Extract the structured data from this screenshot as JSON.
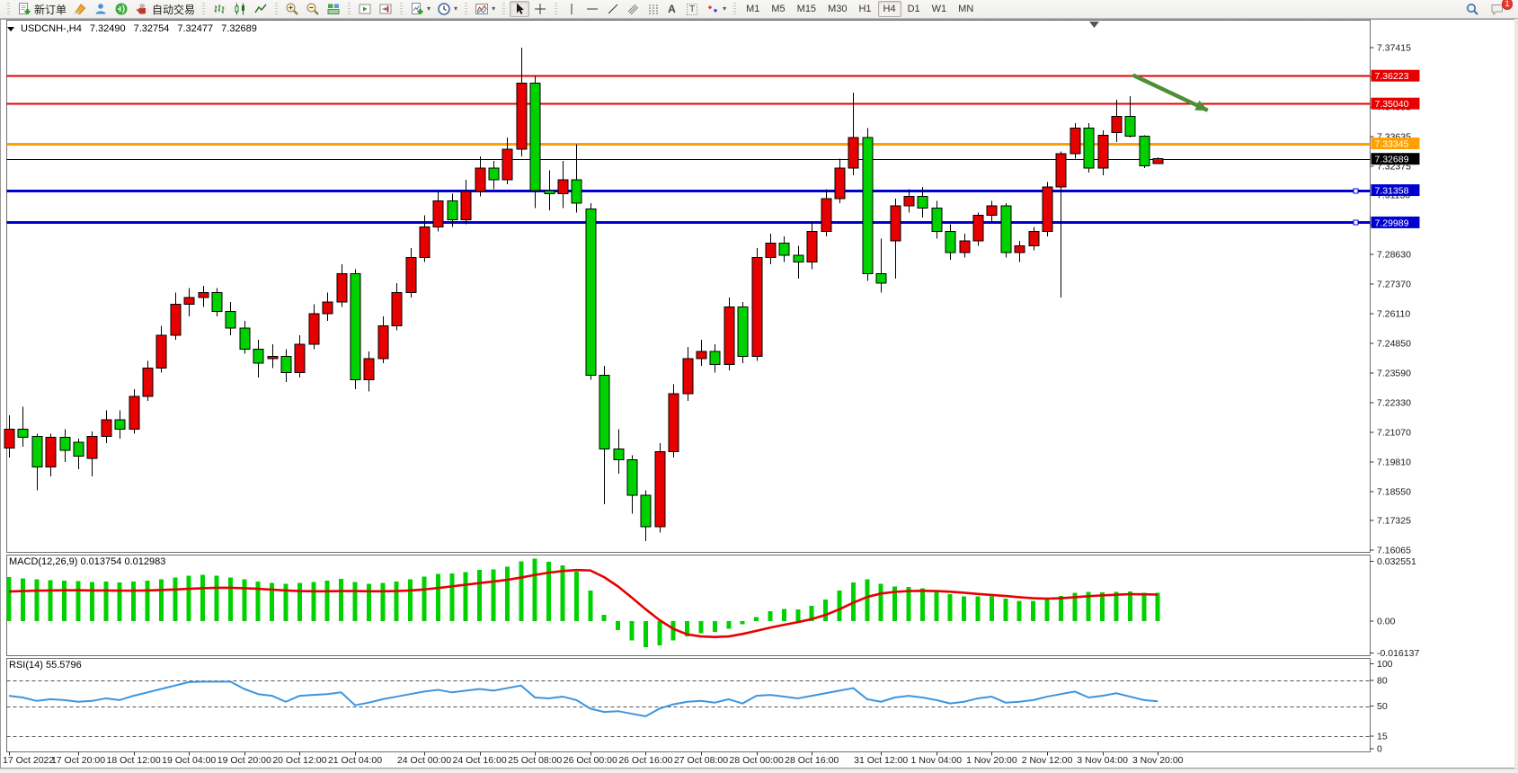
{
  "toolbar": {
    "new_order_label": "新订单",
    "auto_trading_label": "自动交易",
    "text_tool_glyph": "A",
    "label_tool_glyph": "T",
    "timeframes": [
      "M1",
      "M5",
      "M15",
      "M30",
      "H1",
      "H4",
      "D1",
      "W1",
      "MN"
    ],
    "active_timeframe": "H4",
    "notification_count": "1"
  },
  "chart": {
    "title": {
      "symbol": "USDCNH-,H4",
      "open": "7.32490",
      "high": "7.32754",
      "low": "7.32477",
      "close": "7.32689"
    }
  },
  "indicators": {
    "macd": {
      "label": "MACD(12,26,9)",
      "value": "0.013754",
      "signal_value": "0.012983",
      "axis": [
        {
          "v": 0.032551,
          "label": "0.032551"
        },
        {
          "v": 0,
          "label": "0.00"
        },
        {
          "v": -0.016137,
          "label": "-0.016137"
        }
      ]
    },
    "rsi": {
      "label": "RSI(14)",
      "value": "55.5796",
      "levels": [
        80,
        50,
        15
      ],
      "axis": [
        {
          "v": 100,
          "label": "100"
        },
        {
          "v": 80,
          "label": "80"
        },
        {
          "v": 50,
          "label": "50"
        },
        {
          "v": 15,
          "label": "15"
        },
        {
          "v": 0,
          "label": "0"
        }
      ]
    }
  },
  "price_axis": {
    "ticks": [
      {
        "v": 7.37415,
        "label": "7.37415"
      },
      {
        "v": 7.36155,
        "label": "7.36155"
      },
      {
        "v": 7.34895,
        "label": "7.34895"
      },
      {
        "v": 7.33635,
        "label": "7.33635"
      },
      {
        "v": 7.32375,
        "label": "7.32375"
      },
      {
        "v": 7.3115,
        "label": "7.31150"
      },
      {
        "v": 7.2989,
        "label": "7.29890"
      },
      {
        "v": 7.2863,
        "label": "7.28630"
      },
      {
        "v": 7.2737,
        "label": "7.27370"
      },
      {
        "v": 7.2611,
        "label": "7.26110"
      },
      {
        "v": 7.2485,
        "label": "7.24850"
      },
      {
        "v": 7.2359,
        "label": "7.23590"
      },
      {
        "v": 7.2233,
        "label": "7.22330"
      },
      {
        "v": 7.2107,
        "label": "7.21070"
      },
      {
        "v": 7.1981,
        "label": "7.19810"
      },
      {
        "v": 7.1855,
        "label": "7.18550"
      },
      {
        "v": 7.17325,
        "label": "7.17325"
      },
      {
        "v": 7.16065,
        "label": "7.16065"
      }
    ]
  },
  "time_axis": {
    "labels": [
      {
        "text": "17 Oct 2022",
        "idx": 0
      },
      {
        "text": "17 Oct 20:00",
        "idx": 5
      },
      {
        "text": "18 Oct 12:00",
        "idx": 9
      },
      {
        "text": "19 Oct 04:00",
        "idx": 13
      },
      {
        "text": "19 Oct 20:00",
        "idx": 17
      },
      {
        "text": "20 Oct 12:00",
        "idx": 21
      },
      {
        "text": "21 Oct 04:00",
        "idx": 25
      },
      {
        "text": "24 Oct 00:00",
        "idx": 30
      },
      {
        "text": "24 Oct 16:00",
        "idx": 34
      },
      {
        "text": "25 Oct 08:00",
        "idx": 38
      },
      {
        "text": "26 Oct 00:00",
        "idx": 42
      },
      {
        "text": "26 Oct 16:00",
        "idx": 46
      },
      {
        "text": "27 Oct 08:00",
        "idx": 50
      },
      {
        "text": "28 Oct 00:00",
        "idx": 54
      },
      {
        "text": "28 Oct 16:00",
        "idx": 58
      },
      {
        "text": "31 Oct 12:00",
        "idx": 63
      },
      {
        "text": "1 Nov 04:00",
        "idx": 67
      },
      {
        "text": "1 Nov 20:00",
        "idx": 71
      },
      {
        "text": "2 Nov 12:00",
        "idx": 75
      },
      {
        "text": "3 Nov 04:00",
        "idx": 79
      },
      {
        "text": "3 Nov 20:00",
        "idx": 83
      }
    ]
  },
  "colors": {
    "up": "#e80000",
    "down": "#00d200",
    "wick": "#000000",
    "line_red": "#e60000",
    "line_orange": "#ffa000",
    "line_blue": "#0000d2",
    "line_black": "#000000",
    "macd_bar": "#00d200",
    "macd_signal": "#e60000",
    "rsi_line": "#3d95dd",
    "arrow": "#4e8f35",
    "badge_text": "#ffffff",
    "axis_text": "#1a1a1a"
  },
  "chart_data": {
    "type": "candlestick",
    "symbol": "USDCNH-",
    "timeframe": "H4",
    "horizontal_lines": [
      {
        "price": 7.36223,
        "label": "7.36223",
        "color": "#e60000",
        "width": 2,
        "handle": false
      },
      {
        "price": 7.3504,
        "label": "7.35040",
        "color": "#e60000",
        "width": 2,
        "handle": false
      },
      {
        "price": 7.33345,
        "label": "7.33345",
        "color": "#ffa000",
        "width": 3,
        "handle": false
      },
      {
        "price": 7.32689,
        "label": "7.32689",
        "color": "#000000",
        "width": 1,
        "handle": false
      },
      {
        "price": 7.31358,
        "label": "7.31358",
        "color": "#0000d2",
        "width": 3,
        "handle": true
      },
      {
        "price": 7.29989,
        "label": "7.29989",
        "color": "#0000d2",
        "width": 3,
        "handle": true
      }
    ],
    "arrow": {
      "i1": 81.2,
      "p1": 7.3625,
      "i2": 86.6,
      "p2": 7.3475
    },
    "candles": [
      {
        "t": "17 Oct 00:00",
        "o": 7.204,
        "h": 7.218,
        "l": 7.2,
        "c": 7.212
      },
      {
        "t": "17 Oct 04:00",
        "o": 7.212,
        "h": 7.2215,
        "l": 7.2045,
        "c": 7.2085
      },
      {
        "t": "17 Oct 08:00",
        "o": 7.209,
        "h": 7.21,
        "l": 7.186,
        "c": 7.196
      },
      {
        "t": "17 Oct 12:00",
        "o": 7.196,
        "h": 7.21,
        "l": 7.192,
        "c": 7.2085
      },
      {
        "t": "17 Oct 16:00",
        "o": 7.2085,
        "h": 7.212,
        "l": 7.198,
        "c": 7.203
      },
      {
        "t": "17 Oct 20:00",
        "o": 7.2065,
        "h": 7.208,
        "l": 7.195,
        "c": 7.2005
      },
      {
        "t": "18 Oct 00:00",
        "o": 7.1995,
        "h": 7.211,
        "l": 7.192,
        "c": 7.209
      },
      {
        "t": "18 Oct 04:00",
        "o": 7.209,
        "h": 7.22,
        "l": 7.206,
        "c": 7.216
      },
      {
        "t": "18 Oct 08:00",
        "o": 7.216,
        "h": 7.22,
        "l": 7.208,
        "c": 7.212
      },
      {
        "t": "18 Oct 12:00",
        "o": 7.212,
        "h": 7.229,
        "l": 7.21,
        "c": 7.226
      },
      {
        "t": "18 Oct 16:00",
        "o": 7.226,
        "h": 7.241,
        "l": 7.224,
        "c": 7.238
      },
      {
        "t": "18 Oct 20:00",
        "o": 7.238,
        "h": 7.256,
        "l": 7.236,
        "c": 7.252
      },
      {
        "t": "19 Oct 00:00",
        "o": 7.252,
        "h": 7.27,
        "l": 7.25,
        "c": 7.265
      },
      {
        "t": "19 Oct 04:00",
        "o": 7.265,
        "h": 7.272,
        "l": 7.26,
        "c": 7.268
      },
      {
        "t": "19 Oct 08:00",
        "o": 7.268,
        "h": 7.273,
        "l": 7.264,
        "c": 7.27
      },
      {
        "t": "19 Oct 12:00",
        "o": 7.27,
        "h": 7.272,
        "l": 7.26,
        "c": 7.262
      },
      {
        "t": "19 Oct 16:00",
        "o": 7.262,
        "h": 7.266,
        "l": 7.252,
        "c": 7.255
      },
      {
        "t": "19 Oct 20:00",
        "o": 7.255,
        "h": 7.258,
        "l": 7.244,
        "c": 7.246
      },
      {
        "t": "20 Oct 00:00",
        "o": 7.246,
        "h": 7.25,
        "l": 7.234,
        "c": 7.24
      },
      {
        "t": "20 Oct 04:00",
        "o": 7.242,
        "h": 7.248,
        "l": 7.238,
        "c": 7.243
      },
      {
        "t": "20 Oct 08:00",
        "o": 7.243,
        "h": 7.246,
        "l": 7.232,
        "c": 7.236
      },
      {
        "t": "20 Oct 12:00",
        "o": 7.236,
        "h": 7.252,
        "l": 7.234,
        "c": 7.248
      },
      {
        "t": "20 Oct 16:00",
        "o": 7.248,
        "h": 7.265,
        "l": 7.246,
        "c": 7.261
      },
      {
        "t": "20 Oct 20:00",
        "o": 7.261,
        "h": 7.27,
        "l": 7.258,
        "c": 7.266
      },
      {
        "t": "21 Oct 00:00",
        "o": 7.266,
        "h": 7.282,
        "l": 7.264,
        "c": 7.278
      },
      {
        "t": "21 Oct 04:00",
        "o": 7.278,
        "h": 7.28,
        "l": 7.229,
        "c": 7.233
      },
      {
        "t": "21 Oct 08:00",
        "o": 7.233,
        "h": 7.245,
        "l": 7.228,
        "c": 7.242
      },
      {
        "t": "21 Oct 12:00",
        "o": 7.242,
        "h": 7.26,
        "l": 7.24,
        "c": 7.256
      },
      {
        "t": "21 Oct 16:00",
        "o": 7.256,
        "h": 7.274,
        "l": 7.254,
        "c": 7.27
      },
      {
        "t": "21 Oct 20:00",
        "o": 7.27,
        "h": 7.289,
        "l": 7.268,
        "c": 7.285
      },
      {
        "t": "24 Oct 00:00",
        "o": 7.285,
        "h": 7.303,
        "l": 7.283,
        "c": 7.298
      },
      {
        "t": "24 Oct 04:00",
        "o": 7.298,
        "h": 7.313,
        "l": 7.296,
        "c": 7.309
      },
      {
        "t": "24 Oct 08:00",
        "o": 7.309,
        "h": 7.312,
        "l": 7.298,
        "c": 7.301
      },
      {
        "t": "24 Oct 12:00",
        "o": 7.301,
        "h": 7.318,
        "l": 7.299,
        "c": 7.313
      },
      {
        "t": "24 Oct 16:00",
        "o": 7.313,
        "h": 7.328,
        "l": 7.311,
        "c": 7.323
      },
      {
        "t": "24 Oct 20:00",
        "o": 7.323,
        "h": 7.326,
        "l": 7.314,
        "c": 7.318
      },
      {
        "t": "25 Oct 00:00",
        "o": 7.318,
        "h": 7.336,
        "l": 7.316,
        "c": 7.331
      },
      {
        "t": "25 Oct 04:00",
        "o": 7.331,
        "h": 7.3742,
        "l": 7.328,
        "c": 7.359
      },
      {
        "t": "25 Oct 08:00",
        "o": 7.359,
        "h": 7.362,
        "l": 7.306,
        "c": 7.3135
      },
      {
        "t": "25 Oct 12:00",
        "o": 7.3135,
        "h": 7.322,
        "l": 7.305,
        "c": 7.312
      },
      {
        "t": "25 Oct 16:00",
        "o": 7.312,
        "h": 7.326,
        "l": 7.306,
        "c": 7.318
      },
      {
        "t": "25 Oct 20:00",
        "o": 7.318,
        "h": 7.333,
        "l": 7.304,
        "c": 7.308
      },
      {
        "t": "26 Oct 00:00",
        "o": 7.3055,
        "h": 7.308,
        "l": 7.233,
        "c": 7.235
      },
      {
        "t": "26 Oct 04:00",
        "o": 7.235,
        "h": 7.239,
        "l": 7.18,
        "c": 7.2035
      },
      {
        "t": "26 Oct 08:00",
        "o": 7.2035,
        "h": 7.212,
        "l": 7.193,
        "c": 7.199
      },
      {
        "t": "26 Oct 12:00",
        "o": 7.199,
        "h": 7.201,
        "l": 7.176,
        "c": 7.184
      },
      {
        "t": "26 Oct 16:00",
        "o": 7.184,
        "h": 7.186,
        "l": 7.1645,
        "c": 7.1705
      },
      {
        "t": "26 Oct 20:00",
        "o": 7.1705,
        "h": 7.206,
        "l": 7.168,
        "c": 7.2025
      },
      {
        "t": "27 Oct 00:00",
        "o": 7.2025,
        "h": 7.231,
        "l": 7.2,
        "c": 7.227
      },
      {
        "t": "27 Oct 04:00",
        "o": 7.227,
        "h": 7.247,
        "l": 7.224,
        "c": 7.242
      },
      {
        "t": "27 Oct 08:00",
        "o": 7.242,
        "h": 7.25,
        "l": 7.239,
        "c": 7.245
      },
      {
        "t": "27 Oct 12:00",
        "o": 7.245,
        "h": 7.248,
        "l": 7.236,
        "c": 7.2395
      },
      {
        "t": "27 Oct 16:00",
        "o": 7.2395,
        "h": 7.268,
        "l": 7.237,
        "c": 7.264
      },
      {
        "t": "27 Oct 20:00",
        "o": 7.264,
        "h": 7.266,
        "l": 7.24,
        "c": 7.243
      },
      {
        "t": "28 Oct 00:00",
        "o": 7.243,
        "h": 7.289,
        "l": 7.241,
        "c": 7.285
      },
      {
        "t": "28 Oct 04:00",
        "o": 7.285,
        "h": 7.295,
        "l": 7.282,
        "c": 7.291
      },
      {
        "t": "28 Oct 08:00",
        "o": 7.291,
        "h": 7.294,
        "l": 7.283,
        "c": 7.286
      },
      {
        "t": "28 Oct 12:00",
        "o": 7.286,
        "h": 7.29,
        "l": 7.276,
        "c": 7.283
      },
      {
        "t": "28 Oct 16:00",
        "o": 7.283,
        "h": 7.3,
        "l": 7.28,
        "c": 7.296
      },
      {
        "t": "28 Oct 20:00",
        "o": 7.296,
        "h": 7.314,
        "l": 7.294,
        "c": 7.31
      },
      {
        "t": "31 Oct 00:00",
        "o": 7.31,
        "h": 7.327,
        "l": 7.308,
        "c": 7.323
      },
      {
        "t": "31 Oct 04:00",
        "o": 7.323,
        "h": 7.355,
        "l": 7.32,
        "c": 7.336
      },
      {
        "t": "31 Oct 08:00",
        "o": 7.336,
        "h": 7.34,
        "l": 7.275,
        "c": 7.278
      },
      {
        "t": "31 Oct 12:00",
        "o": 7.278,
        "h": 7.293,
        "l": 7.27,
        "c": 7.274
      },
      {
        "t": "31 Oct 16:00",
        "o": 7.292,
        "h": 7.31,
        "l": 7.276,
        "c": 7.307
      },
      {
        "t": "31 Oct 20:00",
        "o": 7.307,
        "h": 7.314,
        "l": 7.304,
        "c": 7.311
      },
      {
        "t": "1 Nov 00:00",
        "o": 7.311,
        "h": 7.315,
        "l": 7.302,
        "c": 7.306
      },
      {
        "t": "1 Nov 04:00",
        "o": 7.306,
        "h": 7.309,
        "l": 7.293,
        "c": 7.296
      },
      {
        "t": "1 Nov 08:00",
        "o": 7.296,
        "h": 7.299,
        "l": 7.284,
        "c": 7.287
      },
      {
        "t": "1 Nov 12:00",
        "o": 7.287,
        "h": 7.295,
        "l": 7.285,
        "c": 7.292
      },
      {
        "t": "1 Nov 16:00",
        "o": 7.292,
        "h": 7.304,
        "l": 7.29,
        "c": 7.303
      },
      {
        "t": "1 Nov 20:00",
        "o": 7.303,
        "h": 7.309,
        "l": 7.3,
        "c": 7.307
      },
      {
        "t": "2 Nov 00:00",
        "o": 7.307,
        "h": 7.308,
        "l": 7.285,
        "c": 7.287
      },
      {
        "t": "2 Nov 04:00",
        "o": 7.287,
        "h": 7.292,
        "l": 7.283,
        "c": 7.29
      },
      {
        "t": "2 Nov 08:00",
        "o": 7.29,
        "h": 7.298,
        "l": 7.288,
        "c": 7.296
      },
      {
        "t": "2 Nov 12:00",
        "o": 7.296,
        "h": 7.317,
        "l": 7.294,
        "c": 7.315
      },
      {
        "t": "2 Nov 16:00",
        "o": 7.315,
        "h": 7.33,
        "l": 7.268,
        "c": 7.329
      },
      {
        "t": "2 Nov 20:00",
        "o": 7.329,
        "h": 7.342,
        "l": 7.327,
        "c": 7.34
      },
      {
        "t": "3 Nov 00:00",
        "o": 7.34,
        "h": 7.342,
        "l": 7.321,
        "c": 7.323
      },
      {
        "t": "3 Nov 04:00",
        "o": 7.323,
        "h": 7.339,
        "l": 7.32,
        "c": 7.337
      },
      {
        "t": "3 Nov 08:00",
        "o": 7.338,
        "h": 7.352,
        "l": 7.334,
        "c": 7.345
      },
      {
        "t": "3 Nov 12:00",
        "o": 7.345,
        "h": 7.3535,
        "l": 7.336,
        "c": 7.3365
      },
      {
        "t": "3 Nov 16:00",
        "o": 7.3365,
        "h": 7.337,
        "l": 7.323,
        "c": 7.324
      },
      {
        "t": "3 Nov 20:00",
        "o": 7.3249,
        "h": 7.32754,
        "l": 7.32477,
        "c": 7.32689
      }
    ],
    "macd": {
      "histogram": [
        0.0215,
        0.021,
        0.0205,
        0.02,
        0.0198,
        0.0195,
        0.0192,
        0.0194,
        0.019,
        0.0194,
        0.0198,
        0.0205,
        0.0214,
        0.0222,
        0.0226,
        0.0222,
        0.0214,
        0.0204,
        0.0194,
        0.0188,
        0.0182,
        0.0186,
        0.0192,
        0.0198,
        0.0206,
        0.0192,
        0.0182,
        0.0186,
        0.0194,
        0.0205,
        0.0218,
        0.023,
        0.0234,
        0.024,
        0.025,
        0.0254,
        0.0266,
        0.0292,
        0.0305,
        0.029,
        0.0272,
        0.0242,
        0.015,
        0.003,
        -0.0045,
        -0.0095,
        -0.0128,
        -0.0118,
        -0.0095,
        -0.0075,
        -0.006,
        -0.0052,
        -0.0038,
        -0.0015,
        0.002,
        0.0048,
        0.006,
        0.0058,
        0.0075,
        0.0105,
        0.015,
        0.019,
        0.0205,
        0.0182,
        0.017,
        0.0168,
        0.016,
        0.0148,
        0.0132,
        0.0122,
        0.012,
        0.0122,
        0.011,
        0.01,
        0.0098,
        0.0108,
        0.0124,
        0.0138,
        0.0142,
        0.014,
        0.0144,
        0.0146,
        0.0138,
        0.013754
      ],
      "signal": [
        0.0145,
        0.0147,
        0.0149,
        0.015,
        0.0151,
        0.0151,
        0.015,
        0.015,
        0.0149,
        0.0149,
        0.015,
        0.0152,
        0.0155,
        0.0158,
        0.0161,
        0.0163,
        0.0163,
        0.0161,
        0.0158,
        0.0154,
        0.015,
        0.0147,
        0.0146,
        0.0146,
        0.0147,
        0.0147,
        0.0146,
        0.0146,
        0.0147,
        0.015,
        0.0155,
        0.0162,
        0.017,
        0.0178,
        0.0186,
        0.0194,
        0.0202,
        0.0213,
        0.0226,
        0.0237,
        0.0245,
        0.025,
        0.0248,
        0.0215,
        0.017,
        0.0115,
        0.0058,
        0.0005,
        -0.0038,
        -0.0065,
        -0.0075,
        -0.0078,
        -0.0075,
        -0.0063,
        -0.0048,
        -0.0032,
        -0.0018,
        -0.0005,
        0.001,
        0.003,
        0.0058,
        0.009,
        0.0118,
        0.0135,
        0.0143,
        0.0147,
        0.0148,
        0.0147,
        0.0144,
        0.0139,
        0.0133,
        0.0128,
        0.0123,
        0.0117,
        0.0112,
        0.011,
        0.0112,
        0.0117,
        0.0122,
        0.0126,
        0.0129,
        0.0132,
        0.0131,
        0.012983
      ]
    },
    "rsi": [
      62,
      60,
      56,
      58,
      57,
      55,
      56,
      59,
      57,
      62,
      66,
      70,
      74,
      78,
      78.5,
      78.5,
      78.5,
      70,
      64,
      62,
      55,
      62,
      63,
      64,
      66,
      51,
      54,
      58,
      61,
      64,
      67,
      69,
      66,
      68,
      70,
      68,
      71,
      74,
      60,
      59,
      61,
      57,
      47,
      43,
      44,
      41,
      38,
      47,
      52,
      55,
      56,
      54,
      58,
      53,
      62,
      63,
      61,
      59,
      62,
      65,
      68,
      71,
      58,
      55,
      60,
      62,
      60,
      57,
      53,
      55,
      59,
      61,
      54,
      55,
      57,
      61,
      64,
      67,
      60,
      62,
      65,
      61,
      57,
      55.5796
    ]
  }
}
